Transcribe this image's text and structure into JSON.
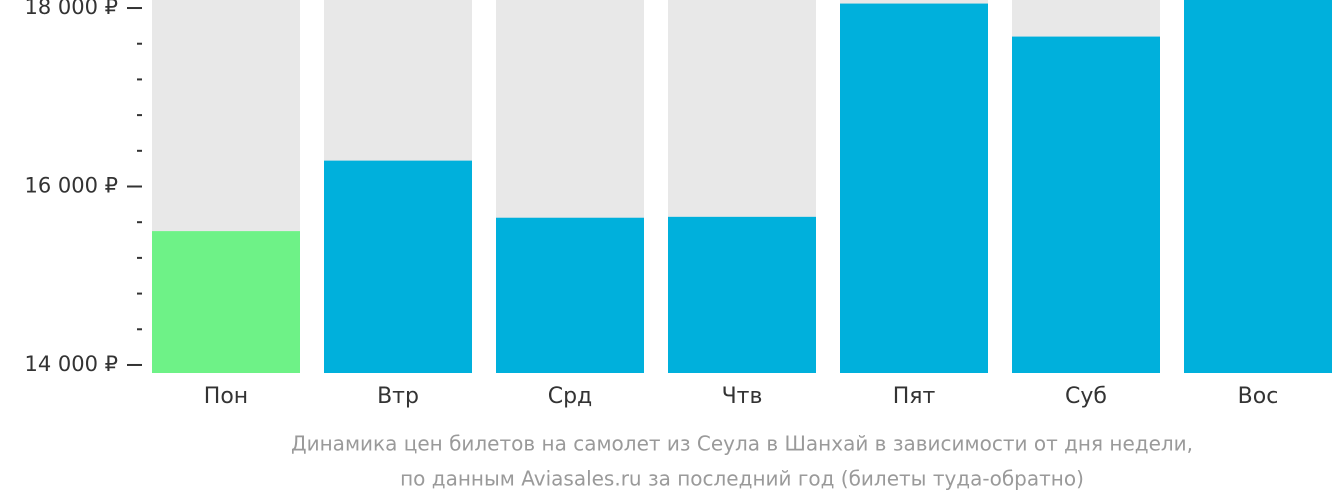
{
  "chart_data": {
    "type": "bar",
    "title": "Динамика цен билетов на самолет из Сеула в Шанхай в зависимости от дня недели,",
    "subtitle": "по данным Aviasales.ru за последний год (билеты туда-обратно)",
    "categories": [
      "Пон",
      "Втр",
      "Срд",
      "Чтв",
      "Пят",
      "Суб",
      "Вос"
    ],
    "values": [
      15500,
      16290,
      15650,
      15660,
      18050,
      17680,
      18090
    ],
    "colors": [
      "#6ef287",
      "#00b0dc",
      "#00b0dc",
      "#00b0dc",
      "#00b0dc",
      "#00b0dc",
      "#00b0dc"
    ],
    "background_color": "#e8e8e8",
    "ylim": [
      13910,
      18090
    ],
    "yticks": [
      {
        "value": 14000,
        "label": "14 000 ₽"
      },
      {
        "value": 16000,
        "label": "16 000 ₽"
      },
      {
        "value": 18000,
        "label": "18 000 ₽"
      }
    ],
    "minor_yticks": [
      14400,
      14800,
      15200,
      15600,
      16400,
      16800,
      17200,
      17600
    ]
  }
}
